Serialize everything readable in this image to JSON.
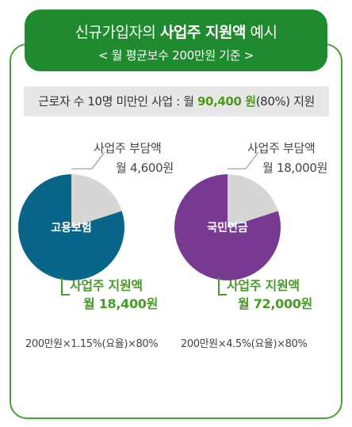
{
  "header": {
    "title_prefix": "신규가입자의",
    "title_bold": "사업주 지원액",
    "title_suffix": "예시",
    "subtitle": "< 월 평균보수 200만원 기준 >"
  },
  "band": {
    "prefix": "근로자 수 10명 미만인 사업 : 월",
    "amount": "90,400 원",
    "suffix": "(80%) 지원"
  },
  "colors": {
    "green_dark": "#1f8a2e",
    "green_text": "#4a9a2a",
    "blue": "#0a6688",
    "purple": "#773a90",
    "gray_slice": "#d6d6d6"
  },
  "chart_data": [
    {
      "type": "pie",
      "center_label": "고용보험",
      "slices": [
        {
          "name": "사업주 부담액",
          "value": 4600,
          "text": "월 4,600원"
        },
        {
          "name": "사업주 지원액",
          "value": 18400,
          "text": "월 18,400원"
        }
      ],
      "formula": "200만원×1.15%(요율)×80%"
    },
    {
      "type": "pie",
      "center_label": "국민연금",
      "slices": [
        {
          "name": "사업주 부담액",
          "value": 18000,
          "text": "월 18,000원"
        },
        {
          "name": "사업주 지원액",
          "value": 72000,
          "text": "월 72,000원"
        }
      ],
      "formula": "200만원×4.5%(요율)×80%"
    }
  ]
}
